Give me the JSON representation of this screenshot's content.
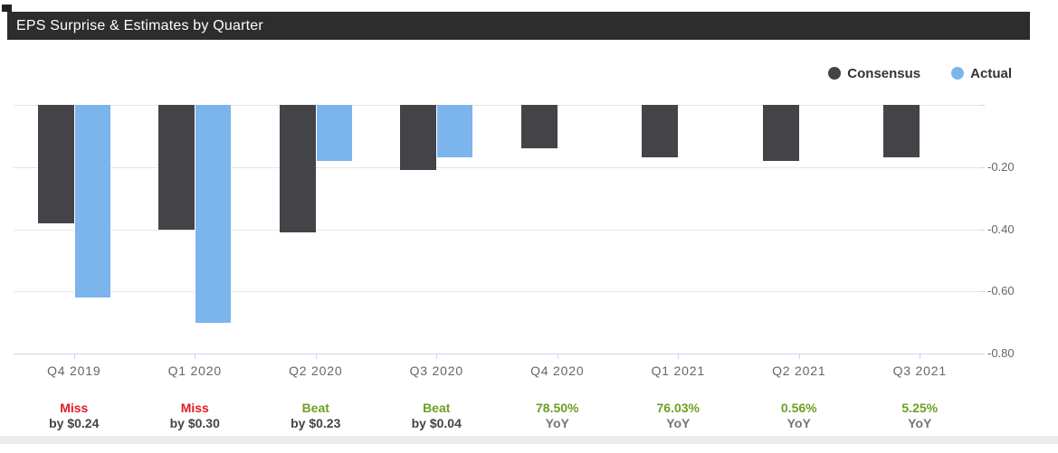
{
  "title": "EPS Surprise & Estimates by Quarter",
  "legend": [
    {
      "name": "Consensus",
      "color": "#434348"
    },
    {
      "name": "Actual",
      "color": "#7cb5ec"
    }
  ],
  "chart_data": {
    "type": "bar",
    "title": "EPS Surprise & Estimates by Quarter",
    "categories": [
      "Q4 2019",
      "Q1 2020",
      "Q2 2020",
      "Q3 2020",
      "Q4 2020",
      "Q1 2021",
      "Q2 2021",
      "Q3 2021"
    ],
    "series": [
      {
        "name": "Consensus",
        "color": "#434348",
        "values": [
          -0.38,
          -0.4,
          -0.41,
          -0.21,
          -0.14,
          -0.17,
          -0.18,
          -0.17
        ]
      },
      {
        "name": "Actual",
        "color": "#7cb5ec",
        "values": [
          -0.62,
          -0.7,
          -0.18,
          -0.17,
          null,
          null,
          null,
          null
        ]
      }
    ],
    "ylim": [
      -0.8,
      0
    ],
    "yticks": [
      0,
      -0.2,
      -0.4,
      -0.6,
      -0.8
    ],
    "ytick_labels": [
      "",
      "-0.20",
      "-0.40",
      "-0.60",
      "-0.80"
    ],
    "grid": true,
    "legend_position": "top-right",
    "annotations": [
      {
        "line1": "Miss",
        "type": "miss",
        "line2": "by $0.24"
      },
      {
        "line1": "Miss",
        "type": "miss",
        "line2": "by $0.30"
      },
      {
        "line1": "Beat",
        "type": "beat",
        "line2": "by $0.23"
      },
      {
        "line1": "Beat",
        "type": "beat",
        "line2": "by $0.04"
      },
      {
        "line1": "78.50%",
        "type": "yoy",
        "line2": "YoY"
      },
      {
        "line1": "76.03%",
        "type": "yoy",
        "line2": "YoY"
      },
      {
        "line1": "0.56%",
        "type": "yoy",
        "line2": "YoY"
      },
      {
        "line1": "5.25%",
        "type": "yoy",
        "line2": "YoY"
      }
    ]
  },
  "colors": {
    "consensus": "#434348",
    "actual": "#7cb5ec",
    "miss": "#e01a22",
    "beat": "#6aa121",
    "yoy_value": "#6aa121",
    "by_text": "#444444",
    "yoy_text": "#757575",
    "grid": "#e6e6e6",
    "axis": "#ccd6eb",
    "axis_label": "#666666",
    "title_bg": "#2d2d2d",
    "title_text": "#ffffff"
  }
}
